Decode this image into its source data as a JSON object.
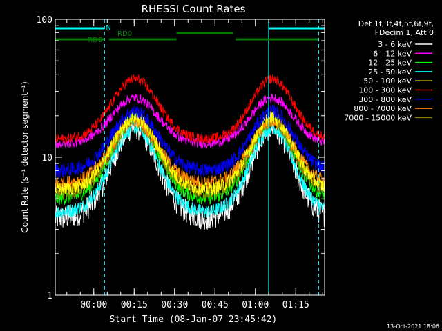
{
  "chart_data": {
    "type": "line",
    "title": "RHESSI Count Rates",
    "xlabel": "Start Time (08-Jan-07 23:45:42)",
    "ylabel": "Count Rate (s⁻¹ detector segment⁻¹)",
    "yscale": "log",
    "ylim": [
      1,
      100
    ],
    "xlim_minutes_from_start": [
      0,
      100
    ],
    "x_ticks": [
      {
        "label": "00:00",
        "minute": 14.3
      },
      {
        "label": "00:15",
        "minute": 29.3
      },
      {
        "label": "00:30",
        "minute": 44.3
      },
      {
        "label": "00:45",
        "minute": 59.3
      },
      {
        "label": "01:00",
        "minute": 74.3
      },
      {
        "label": "01:15",
        "minute": 89.3
      }
    ],
    "y_ticks": [
      {
        "label": "1",
        "value": 1
      },
      {
        "label": "10",
        "value": 10
      },
      {
        "label": "100",
        "value": 100
      }
    ],
    "legend_title": [
      "Det 1f,3f,4f,5f,6f,9f,",
      "FDecim 1, Att 0"
    ],
    "legend_position": "right",
    "series": [
      {
        "name": "3 - 6 keV",
        "color": "#ffffff",
        "base": 3.6,
        "peak": 16.5
      },
      {
        "name": "6 - 12 keV",
        "color": "#ff00ff",
        "base": 12.5,
        "peak": 27
      },
      {
        "name": "12 - 25 keV",
        "color": "#00ff00",
        "base": 5.0,
        "peak": 19
      },
      {
        "name": "25 - 50 keV",
        "color": "#00ffff",
        "base": 4.0,
        "peak": 16.5
      },
      {
        "name": "50 - 100 keV",
        "color": "#ffff00",
        "base": 5.8,
        "peak": 19.5
      },
      {
        "name": "100 - 300 keV",
        "color": "#ff0000",
        "base": 13.5,
        "peak": 37
      },
      {
        "name": "300 - 800 keV",
        "color": "#0000ff",
        "base": 8.0,
        "peak": 21.5
      },
      {
        "name": "800 - 7000 keV",
        "color": "#ff8800",
        "base": 6.5,
        "peak": 18.5
      },
      {
        "name": "7000 - 15000 keV",
        "color": "#8b8000",
        "base": 5.5,
        "peak": 18
      }
    ],
    "black_series_color": "#000000",
    "peak_times_minutes": [
      29.5,
      80.5
    ],
    "trough_times_minutes": [
      0,
      54,
      100
    ],
    "vertical_markers": [
      {
        "minute": 18.3,
        "style": "dashed",
        "color": "#00ffff"
      },
      {
        "minute": 79.2,
        "style": "solid",
        "color": "#00ffff"
      },
      {
        "minute": 97.8,
        "style": "dashed",
        "color": "#00ffff"
      }
    ],
    "flags": [
      {
        "label": "N",
        "color": "#00ffff",
        "segments": [
          [
            0,
            18.3
          ],
          [
            79.2,
            100
          ]
        ]
      },
      {
        "label": "RD0",
        "color": "#008000",
        "segments": [
          [
            45,
            66
          ]
        ]
      },
      {
        "label": "RD6",
        "color": "#008000",
        "segments": [
          [
            0,
            18.3
          ],
          [
            20,
            45
          ],
          [
            67,
            97.5
          ]
        ]
      }
    ]
  },
  "footer": {
    "timestamp": "13-Oct-2021 18:06"
  }
}
